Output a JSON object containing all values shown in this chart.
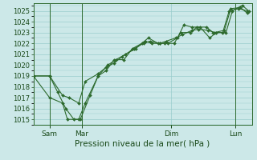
{
  "xlabel": "Pression niveau de la mer( hPa )",
  "bg_color": "#cce8e8",
  "grid_color": "#99cccc",
  "line_color": "#2d6a2d",
  "marker_color": "#2d6a2d",
  "yticks": [
    1015,
    1016,
    1017,
    1018,
    1019,
    1020,
    1021,
    1022,
    1023,
    1024,
    1025
  ],
  "ylim": [
    1014.5,
    1025.7
  ],
  "xlim": [
    0.0,
    13.5
  ],
  "xtick_positions": [
    1.0,
    3.0,
    8.5,
    12.5
  ],
  "xtick_labels": [
    "Sam",
    "Mar",
    "Dim",
    "Lun"
  ],
  "vline_positions": [
    1.0,
    3.0,
    12.5
  ],
  "series": [
    {
      "x": [
        0.0,
        1.0,
        1.8,
        2.2,
        2.8,
        3.2,
        4.0,
        4.5,
        5.0,
        5.5,
        6.2,
        6.8,
        7.2,
        7.8,
        8.2,
        8.8,
        9.2,
        9.8,
        10.2,
        10.8,
        11.2,
        11.8,
        12.2,
        12.8,
        13.2
      ],
      "y": [
        1019.0,
        1019.0,
        1017.2,
        1017.0,
        1016.5,
        1018.5,
        1019.2,
        1019.8,
        1020.2,
        1020.8,
        1021.5,
        1022.0,
        1022.2,
        1022.0,
        1022.2,
        1022.5,
        1022.8,
        1023.2,
        1023.3,
        1023.2,
        1023.0,
        1023.2,
        1025.2,
        1025.3,
        1024.8
      ]
    },
    {
      "x": [
        0.0,
        1.0,
        1.8,
        2.1,
        2.8,
        3.2,
        4.0,
        4.6,
        5.1,
        5.7,
        6.3,
        6.9,
        7.3,
        7.8,
        8.3,
        8.9,
        9.3,
        9.8,
        10.3,
        10.9,
        11.3,
        11.9,
        12.3,
        12.9,
        13.3
      ],
      "y": [
        1019.0,
        1017.0,
        1016.5,
        1015.0,
        1015.0,
        1016.5,
        1019.0,
        1020.0,
        1020.5,
        1021.0,
        1021.5,
        1022.2,
        1022.0,
        1022.0,
        1022.0,
        1022.5,
        1023.7,
        1023.5,
        1023.5,
        1022.5,
        1023.0,
        1023.0,
        1025.0,
        1025.5,
        1025.0
      ]
    },
    {
      "x": [
        0.0,
        1.0,
        1.5,
        2.0,
        2.5,
        2.9,
        3.5,
        4.0,
        4.5,
        5.0,
        5.6,
        6.1,
        6.7,
        7.1,
        7.7,
        8.1,
        8.7,
        9.1,
        9.7,
        10.1,
        10.7,
        11.1,
        11.7,
        12.1,
        12.7,
        13.2
      ],
      "y": [
        1019.0,
        1019.0,
        1017.5,
        1016.0,
        1015.0,
        1015.0,
        1017.2,
        1019.0,
        1019.5,
        1020.5,
        1020.5,
        1021.5,
        1022.0,
        1022.5,
        1022.0,
        1022.0,
        1022.0,
        1023.0,
        1023.0,
        1023.5,
        1023.5,
        1023.0,
        1023.0,
        1025.0,
        1025.2,
        1025.0
      ]
    }
  ]
}
